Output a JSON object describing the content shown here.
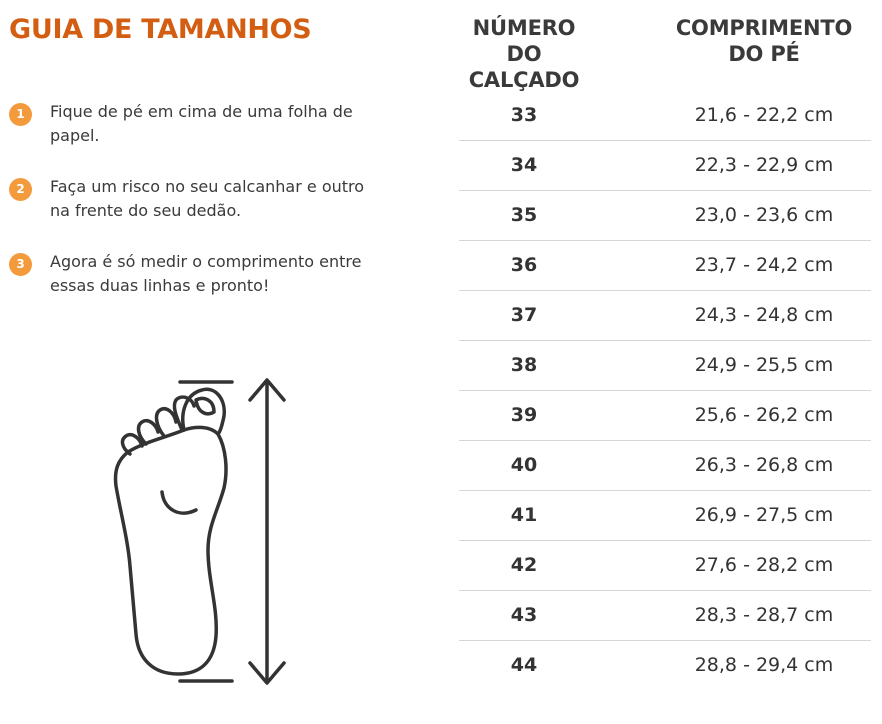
{
  "title": "GUIA DE TAMANHOS",
  "steps": [
    {
      "number": "1",
      "text": "Fique de pé em cima de uma folha de papel."
    },
    {
      "number": "2",
      "text": "Faça um risco no seu calcanhar e outro na frente do seu dedão."
    },
    {
      "number": "3",
      "text": "Agora é só medir o comprimento entre essas duas linhas e pronto!"
    }
  ],
  "illustration": {
    "icon": "foot-measure-icon",
    "stroke_color": "#333333"
  },
  "table": {
    "headers": [
      "NÚMERO DO CALÇADO",
      "COMPRIMENTO DO PÉ"
    ],
    "rows": [
      {
        "size": "33",
        "length": "21,6 - 22,2 cm"
      },
      {
        "size": "34",
        "length": "22,3 - 22,9 cm"
      },
      {
        "size": "35",
        "length": "23,0 - 23,6 cm"
      },
      {
        "size": "36",
        "length": "23,7 - 24,2 cm"
      },
      {
        "size": "37",
        "length": "24,3 - 24,8 cm"
      },
      {
        "size": "38",
        "length": "24,9 - 25,5 cm"
      },
      {
        "size": "39",
        "length": "25,6 - 26,2 cm"
      },
      {
        "size": "40",
        "length": "26,3 - 26,8 cm"
      },
      {
        "size": "41",
        "length": "26,9 - 27,5 cm"
      },
      {
        "size": "42",
        "length": "27,6 - 28,2 cm"
      },
      {
        "size": "43",
        "length": "28,3 - 28,7 cm"
      },
      {
        "size": "44",
        "length": "28,8 - 29,4 cm"
      }
    ]
  },
  "colors": {
    "title": "#d35e12",
    "step_badge": "#f39b3c",
    "text": "#333333",
    "divider": "#d6d6d6"
  }
}
